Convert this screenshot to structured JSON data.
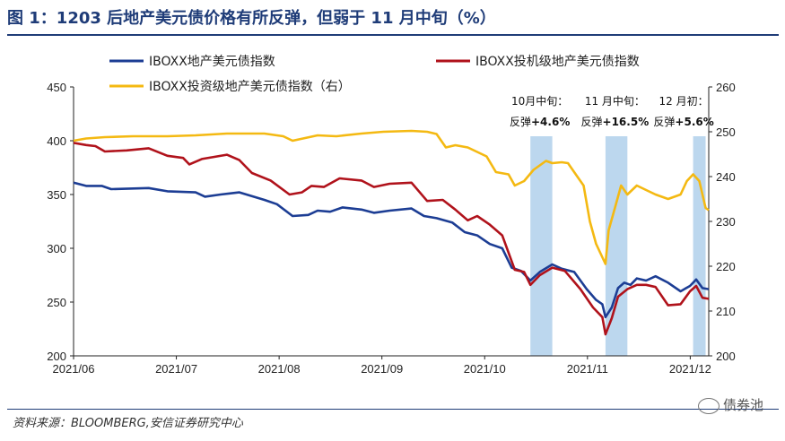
{
  "title": "图 1：1203 后地产美元债价格有所反弹，但弱于 11 月中旬（%）",
  "source": "资料来源：BLOOMBERG,安信证券研究中心",
  "watermark": "债券池",
  "chart_data": {
    "type": "line",
    "x_ticks": [
      "2021/06",
      "2021/07",
      "2021/08",
      "2021/09",
      "2021/10",
      "2021/11",
      "2021/12"
    ],
    "x_range": [
      "2021-06-01",
      "2021-12-21"
    ],
    "y_left": {
      "range": [
        200,
        450
      ],
      "ticks": [
        200,
        250,
        300,
        350,
        400,
        450
      ]
    },
    "y_right": {
      "range": [
        200,
        260
      ],
      "ticks": [
        200,
        210,
        220,
        230,
        240,
        250,
        260
      ]
    },
    "legend": {
      "placement": "top"
    },
    "grid": false,
    "series": [
      {
        "name": "IBOXX地产美元债指数",
        "axis": "left",
        "color": "#1c3d94",
        "points": [
          [
            "2021-06-01",
            361
          ],
          [
            "2021-06-05",
            358
          ],
          [
            "2021-06-10",
            358
          ],
          [
            "2021-06-13",
            355
          ],
          [
            "2021-06-25",
            356
          ],
          [
            "2021-07-01",
            353
          ],
          [
            "2021-07-10",
            352
          ],
          [
            "2021-07-13",
            348
          ],
          [
            "2021-07-18",
            350
          ],
          [
            "2021-07-24",
            352
          ],
          [
            "2021-08-01",
            345
          ],
          [
            "2021-08-05",
            341
          ],
          [
            "2021-08-10",
            330
          ],
          [
            "2021-08-15",
            331
          ],
          [
            "2021-08-18",
            335
          ],
          [
            "2021-08-22",
            334
          ],
          [
            "2021-08-26",
            338
          ],
          [
            "2021-09-01",
            336
          ],
          [
            "2021-09-05",
            333
          ],
          [
            "2021-09-10",
            335
          ],
          [
            "2021-09-17",
            337
          ],
          [
            "2021-09-21",
            330
          ],
          [
            "2021-09-25",
            328
          ],
          [
            "2021-09-30",
            324
          ],
          [
            "2021-10-04",
            315
          ],
          [
            "2021-10-08",
            312
          ],
          [
            "2021-10-12",
            304
          ],
          [
            "2021-10-16",
            300
          ],
          [
            "2021-10-19",
            282
          ],
          [
            "2021-10-22",
            279
          ],
          [
            "2021-10-25",
            270
          ],
          [
            "2021-10-28",
            278
          ],
          [
            "2021-11-01",
            285
          ],
          [
            "2021-11-04",
            281
          ],
          [
            "2021-11-08",
            278
          ],
          [
            "2021-11-12",
            262
          ],
          [
            "2021-11-15",
            252
          ],
          [
            "2021-11-17",
            248
          ],
          [
            "2021-11-18",
            236
          ],
          [
            "2021-11-20",
            245
          ],
          [
            "2021-11-22",
            263
          ],
          [
            "2021-11-24",
            268
          ],
          [
            "2021-11-26",
            266
          ],
          [
            "2021-11-28",
            272
          ],
          [
            "2021-12-01",
            270
          ],
          [
            "2021-12-04",
            274
          ],
          [
            "2021-12-08",
            268
          ],
          [
            "2021-12-12",
            260
          ],
          [
            "2021-12-15",
            265
          ],
          [
            "2021-12-17",
            271
          ],
          [
            "2021-12-19",
            263
          ],
          [
            "2021-12-21",
            262
          ]
        ]
      },
      {
        "name": "IBOXX投机级地产美元债指数",
        "axis": "left",
        "color": "#b0121b",
        "points": [
          [
            "2021-06-01",
            398
          ],
          [
            "2021-06-05",
            396
          ],
          [
            "2021-06-08",
            395
          ],
          [
            "2021-06-11",
            390
          ],
          [
            "2021-06-18",
            391
          ],
          [
            "2021-06-25",
            393
          ],
          [
            "2021-07-01",
            386
          ],
          [
            "2021-07-06",
            384
          ],
          [
            "2021-07-08",
            378
          ],
          [
            "2021-07-12",
            383
          ],
          [
            "2021-07-20",
            387
          ],
          [
            "2021-07-24",
            382
          ],
          [
            "2021-07-28",
            370
          ],
          [
            "2021-08-03",
            363
          ],
          [
            "2021-08-09",
            350
          ],
          [
            "2021-08-13",
            352
          ],
          [
            "2021-08-16",
            358
          ],
          [
            "2021-08-20",
            357
          ],
          [
            "2021-08-25",
            365
          ],
          [
            "2021-09-01",
            363
          ],
          [
            "2021-09-05",
            357
          ],
          [
            "2021-09-10",
            360
          ],
          [
            "2021-09-17",
            361
          ],
          [
            "2021-09-22",
            344
          ],
          [
            "2021-09-27",
            345
          ],
          [
            "2021-10-01",
            336
          ],
          [
            "2021-10-05",
            326
          ],
          [
            "2021-10-08",
            330
          ],
          [
            "2021-10-12",
            322
          ],
          [
            "2021-10-16",
            312
          ],
          [
            "2021-10-20",
            280
          ],
          [
            "2021-10-23",
            278
          ],
          [
            "2021-10-25",
            266
          ],
          [
            "2021-10-28",
            275
          ],
          [
            "2021-11-01",
            282
          ],
          [
            "2021-11-05",
            279
          ],
          [
            "2021-11-10",
            262
          ],
          [
            "2021-11-14",
            245
          ],
          [
            "2021-11-17",
            236
          ],
          [
            "2021-11-18",
            220
          ],
          [
            "2021-11-20",
            235
          ],
          [
            "2021-11-22",
            255
          ],
          [
            "2021-11-25",
            262
          ],
          [
            "2021-11-28",
            266
          ],
          [
            "2021-12-01",
            266
          ],
          [
            "2021-12-04",
            264
          ],
          [
            "2021-12-08",
            247
          ],
          [
            "2021-12-12",
            248
          ],
          [
            "2021-12-15",
            260
          ],
          [
            "2021-12-17",
            265
          ],
          [
            "2021-12-19",
            254
          ],
          [
            "2021-12-21",
            253
          ]
        ]
      },
      {
        "name": "IBOXX投资级地产美元债指数（右）",
        "axis": "right",
        "color": "#f4b912",
        "points": [
          [
            "2021-06-01",
            248
          ],
          [
            "2021-06-05",
            248.5
          ],
          [
            "2021-06-11",
            248.8
          ],
          [
            "2021-06-20",
            249
          ],
          [
            "2021-06-25",
            249
          ],
          [
            "2021-07-01",
            249
          ],
          [
            "2021-07-10",
            249.2
          ],
          [
            "2021-07-20",
            249.6
          ],
          [
            "2021-08-01",
            249.6
          ],
          [
            "2021-08-07",
            249
          ],
          [
            "2021-08-10",
            248
          ],
          [
            "2021-08-14",
            248.6
          ],
          [
            "2021-08-18",
            249.2
          ],
          [
            "2021-08-24",
            249
          ],
          [
            "2021-09-01",
            249.6
          ],
          [
            "2021-09-08",
            250
          ],
          [
            "2021-09-17",
            250.2
          ],
          [
            "2021-09-22",
            250
          ],
          [
            "2021-09-25",
            249.5
          ],
          [
            "2021-09-28",
            246.5
          ],
          [
            "2021-10-01",
            247
          ],
          [
            "2021-10-05",
            246.5
          ],
          [
            "2021-10-11",
            244.5
          ],
          [
            "2021-10-14",
            241
          ],
          [
            "2021-10-18",
            240.5
          ],
          [
            "2021-10-20",
            238
          ],
          [
            "2021-10-23",
            239
          ],
          [
            "2021-10-26",
            241.5
          ],
          [
            "2021-10-30",
            243.5
          ],
          [
            "2021-11-01",
            243
          ],
          [
            "2021-11-04",
            243.2
          ],
          [
            "2021-11-06",
            243
          ],
          [
            "2021-11-09",
            240
          ],
          [
            "2021-11-11",
            238
          ],
          [
            "2021-11-13",
            230
          ],
          [
            "2021-11-15",
            225
          ],
          [
            "2021-11-18",
            220.5
          ],
          [
            "2021-11-19",
            228
          ],
          [
            "2021-11-21",
            233
          ],
          [
            "2021-11-23",
            238
          ],
          [
            "2021-11-25",
            236
          ],
          [
            "2021-11-28",
            238
          ],
          [
            "2021-12-01",
            237
          ],
          [
            "2021-12-04",
            236
          ],
          [
            "2021-12-08",
            235
          ],
          [
            "2021-12-12",
            236
          ],
          [
            "2021-12-14",
            239
          ],
          [
            "2021-12-16",
            240.5
          ],
          [
            "2021-12-18",
            239
          ],
          [
            "2021-12-20",
            233
          ],
          [
            "2021-12-21",
            232.5
          ]
        ]
      }
    ],
    "shaded_ranges": [
      {
        "start": "2021-10-25",
        "end": "2021-11-01"
      },
      {
        "start": "2021-11-18",
        "end": "2021-11-25"
      },
      {
        "start": "2021-12-16",
        "end": "2021-12-20"
      }
    ],
    "shade_color": "#bcd7ee",
    "annotations": [
      {
        "line1": "10月中旬：",
        "line2_prefix": "反弹",
        "line2_value": "+4.6%",
        "anchor_date": "2021-10-28"
      },
      {
        "line1": "11 月中旬：",
        "line2_prefix": "反弹",
        "line2_value": "+16.5%",
        "anchor_date": "2021-11-21"
      },
      {
        "line1": "12 月初：",
        "line2_prefix": "反弹",
        "line2_value": "+5.6%",
        "anchor_date": "2021-12-13"
      }
    ]
  }
}
